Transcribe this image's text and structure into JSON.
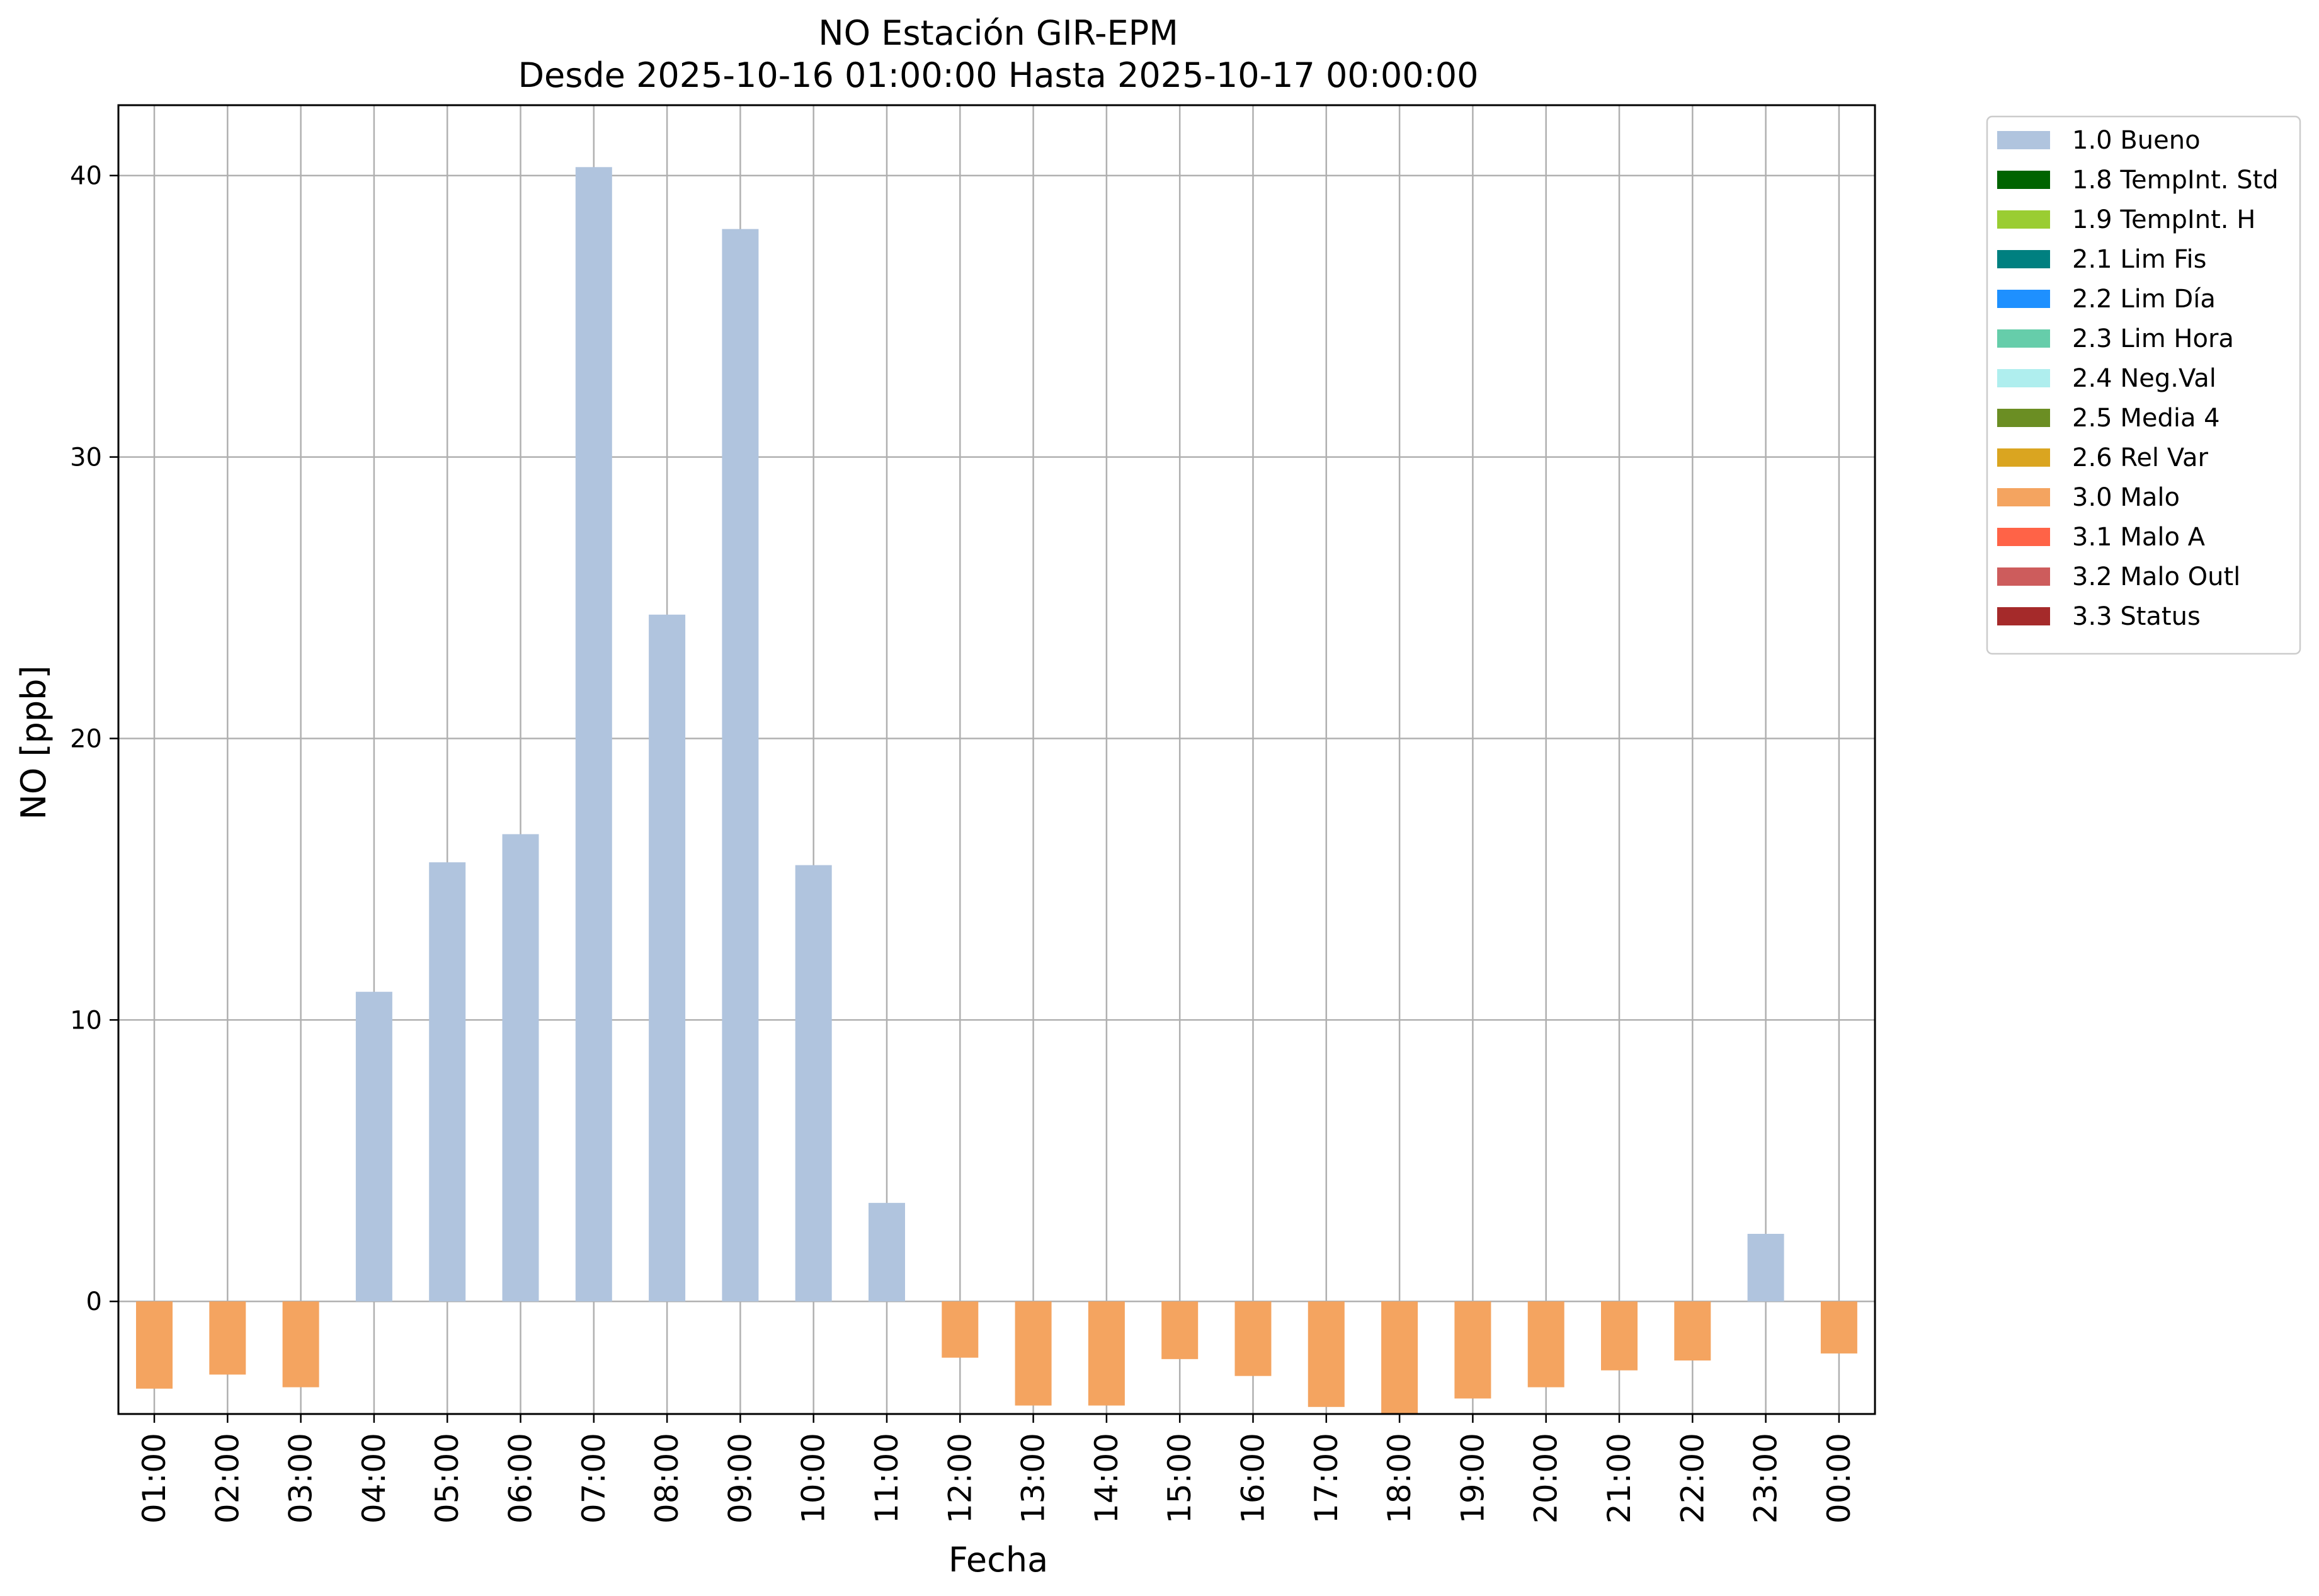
{
  "chart_data": {
    "type": "bar",
    "title": "NO Estación GIR-EPM",
    "subtitle": "Desde 2025-10-16 01:00:00 Hasta 2025-10-17 00:00:00",
    "xlabel": "Fecha",
    "ylabel": "NO [ppb]",
    "ylim": [
      -4,
      42.5
    ],
    "yticks": [
      0,
      10,
      20,
      30,
      40
    ],
    "grid": true,
    "legend_position": "outside top-right",
    "categories": [
      "01:00",
      "02:00",
      "03:00",
      "04:00",
      "05:00",
      "06:00",
      "07:00",
      "08:00",
      "09:00",
      "10:00",
      "11:00",
      "12:00",
      "13:00",
      "14:00",
      "15:00",
      "16:00",
      "17:00",
      "18:00",
      "19:00",
      "20:00",
      "21:00",
      "22:00",
      "23:00",
      "00:00"
    ],
    "values": [
      -3.1,
      -2.6,
      -3.05,
      11.0,
      15.6,
      16.6,
      40.3,
      24.4,
      38.1,
      15.5,
      3.5,
      -2.0,
      -3.7,
      -3.7,
      -2.05,
      -2.65,
      -3.75,
      -4.0,
      -3.45,
      -3.05,
      -2.45,
      -2.1,
      2.4,
      -1.85
    ],
    "flags": [
      "3.0 Malo",
      "3.0 Malo",
      "3.0 Malo",
      "1.0 Bueno",
      "1.0 Bueno",
      "1.0 Bueno",
      "1.0 Bueno",
      "1.0 Bueno",
      "1.0 Bueno",
      "1.0 Bueno",
      "1.0 Bueno",
      "3.0 Malo",
      "3.0 Malo",
      "3.0 Malo",
      "3.0 Malo",
      "3.0 Malo",
      "3.0 Malo",
      "3.0 Malo",
      "3.0 Malo",
      "3.0 Malo",
      "3.0 Malo",
      "3.0 Malo",
      "1.0 Bueno",
      "3.0 Malo"
    ],
    "legend": [
      {
        "label": "1.0 Bueno",
        "color": "#b0c4de"
      },
      {
        "label": "1.8 TempInt. Std",
        "color": "#006400"
      },
      {
        "label": "1.9 TempInt. H",
        "color": "#9acd32"
      },
      {
        "label": "2.1 Lim Fis",
        "color": "#008080"
      },
      {
        "label": "2.2 Lim Día",
        "color": "#1e90ff"
      },
      {
        "label": "2.3 Lim Hora",
        "color": "#66cdaa"
      },
      {
        "label": "2.4 Neg.Val",
        "color": "#afeeee"
      },
      {
        "label": "2.5 Media 4",
        "color": "#6b8e23"
      },
      {
        "label": "2.6 Rel Var",
        "color": "#daa520"
      },
      {
        "label": "3.0 Malo",
        "color": "#f4a460"
      },
      {
        "label": "3.1 Malo A",
        "color": "#ff6347"
      },
      {
        "label": "3.2 Malo Outl",
        "color": "#cd5c5c"
      },
      {
        "label": "3.3 Status",
        "color": "#a52a2a"
      }
    ]
  }
}
